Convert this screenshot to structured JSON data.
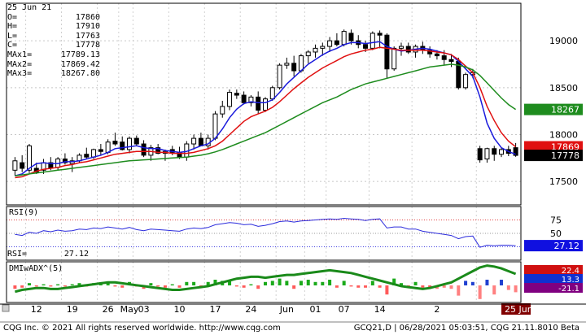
{
  "header": {
    "date": "25 Jun 21",
    "readouts": [
      {
        "label": "O=",
        "value": "17860"
      },
      {
        "label": "H=",
        "value": "17910"
      },
      {
        "label": "L=",
        "value": "17763"
      },
      {
        "label": "C=",
        "value": "17778"
      },
      {
        "label": "MAx1=",
        "value": "17789.13"
      },
      {
        "label": "MAx2=",
        "value": "17869.42"
      },
      {
        "label": "MAx3=",
        "value": "18267.80"
      }
    ]
  },
  "rsi_panel": {
    "title": "RSI(9)",
    "readout_label": "RSI=",
    "readout_value": "27.12"
  },
  "dmi_panel": {
    "title": "DMIwADX^(5)"
  },
  "footer": {
    "left": "CQG Inc. © 2021 All rights reserved worldwide. http://www.cqg.com",
    "right": "GCQ21,D | 06/28/2021 05:03:51, CQG 21.11.8010 Beta"
  },
  "colors": {
    "ma1": "#1a1adc",
    "ma2": "#e01010",
    "ma3": "#1e8c1e",
    "rsi": "#2b2bdc",
    "dmi_plus": "#1010d0",
    "dmi_minus": "#b01010",
    "dmi_last": "#800080"
  },
  "chart_data": [
    {
      "type": "candlestick",
      "ylim": [
        17250,
        19400
      ],
      "yticks": [
        17500,
        18000,
        18500,
        19000
      ],
      "x_tick_labels": [
        "12",
        "19",
        "26",
        "May",
        "03",
        "10",
        "17",
        "24",
        "Jun",
        "01",
        "07",
        "14",
        "2"
      ],
      "x_date_marker": "25 Jun 21",
      "candles": [
        [
          17620,
          17760,
          17560,
          17720
        ],
        [
          17700,
          17780,
          17600,
          17640
        ],
        [
          17620,
          17900,
          17590,
          17880
        ],
        [
          17640,
          17700,
          17580,
          17600
        ],
        [
          17620,
          17740,
          17580,
          17700
        ],
        [
          17700,
          17760,
          17620,
          17640
        ],
        [
          17650,
          17760,
          17620,
          17740
        ],
        [
          17740,
          17800,
          17680,
          17700
        ],
        [
          17690,
          17760,
          17600,
          17720
        ],
        [
          17720,
          17800,
          17700,
          17780
        ],
        [
          17790,
          17860,
          17740,
          17760
        ],
        [
          17760,
          17850,
          17740,
          17840
        ],
        [
          17840,
          17900,
          17780,
          17820
        ],
        [
          17810,
          17950,
          17790,
          17920
        ],
        [
          17930,
          18020,
          17880,
          17900
        ],
        [
          17920,
          17980,
          17830,
          17840
        ],
        [
          17840,
          17980,
          17800,
          17960
        ],
        [
          17960,
          17990,
          17880,
          17900
        ],
        [
          17900,
          17940,
          17760,
          17780
        ],
        [
          17780,
          17890,
          17720,
          17860
        ],
        [
          17860,
          17900,
          17790,
          17800
        ],
        [
          17800,
          17840,
          17720,
          17820
        ],
        [
          17840,
          17880,
          17780,
          17810
        ],
        [
          17810,
          17870,
          17740,
          17760
        ],
        [
          17760,
          17930,
          17720,
          17900
        ],
        [
          17900,
          18000,
          17840,
          17960
        ],
        [
          17960,
          18020,
          17900,
          17880
        ],
        [
          17880,
          18000,
          17840,
          17960
        ],
        [
          17960,
          18250,
          17940,
          18220
        ],
        [
          18220,
          18360,
          18180,
          18300
        ],
        [
          18300,
          18480,
          18260,
          18450
        ],
        [
          18440,
          18480,
          18380,
          18420
        ],
        [
          18420,
          18460,
          18320,
          18340
        ],
        [
          18340,
          18420,
          18300,
          18400
        ],
        [
          18400,
          18460,
          18220,
          18260
        ],
        [
          18260,
          18400,
          18240,
          18380
        ],
        [
          18380,
          18520,
          18360,
          18500
        ],
        [
          18500,
          18760,
          18480,
          18740
        ],
        [
          18740,
          18820,
          18700,
          18760
        ],
        [
          18760,
          18840,
          18620,
          18680
        ],
        [
          18680,
          18860,
          18660,
          18840
        ],
        [
          18840,
          18900,
          18760,
          18880
        ],
        [
          18880,
          18960,
          18820,
          18920
        ],
        [
          18920,
          18980,
          18840,
          18940
        ],
        [
          18940,
          19040,
          18880,
          19000
        ],
        [
          19000,
          19080,
          18940,
          18960
        ],
        [
          18960,
          19120,
          18940,
          19100
        ],
        [
          19080,
          19120,
          18960,
          19000
        ],
        [
          19000,
          19060,
          18920,
          18960
        ],
        [
          18960,
          19000,
          18880,
          18920
        ],
        [
          18920,
          19100,
          18900,
          19080
        ],
        [
          19080,
          19110,
          18920,
          19060
        ],
        [
          19060,
          19080,
          18600,
          18700
        ],
        [
          18700,
          18940,
          18680,
          18920
        ],
        [
          18920,
          18980,
          18840,
          18940
        ],
        [
          18940,
          18980,
          18860,
          18880
        ],
        [
          18880,
          18960,
          18820,
          18940
        ],
        [
          18940,
          18990,
          18860,
          18900
        ],
        [
          18900,
          18940,
          18820,
          18860
        ],
        [
          18860,
          18900,
          18800,
          18840
        ],
        [
          18840,
          18900,
          18740,
          18800
        ],
        [
          18800,
          18860,
          18720,
          18780
        ],
        [
          18780,
          18820,
          18480,
          18500
        ],
        [
          18500,
          18660,
          18480,
          18640
        ],
        [
          18640,
          18700,
          18600,
          18660
        ],
        [
          17850,
          17880,
          17700,
          17730
        ],
        [
          17740,
          17860,
          17700,
          17850
        ],
        [
          17850,
          17880,
          17720,
          17790
        ],
        [
          17790,
          17860,
          17760,
          17840
        ],
        [
          17840,
          17880,
          17770,
          17800
        ],
        [
          17860,
          17910,
          17763,
          17778
        ]
      ],
      "ma_series": [
        {
          "name": "MAx1",
          "last": 17789.13,
          "values": [
            17560,
            17580,
            17640,
            17690,
            17700,
            17690,
            17690,
            17710,
            17710,
            17720,
            17740,
            17760,
            17780,
            17810,
            17850,
            17860,
            17870,
            17880,
            17860,
            17850,
            17850,
            17830,
            17820,
            17810,
            17820,
            17850,
            17880,
            17900,
            17960,
            18060,
            18180,
            18270,
            18330,
            18350,
            18340,
            18340,
            18370,
            18450,
            18540,
            18610,
            18680,
            18750,
            18800,
            18850,
            18890,
            18920,
            18960,
            18980,
            18980,
            18970,
            18980,
            18990,
            18940,
            18910,
            18890,
            18900,
            18910,
            18920,
            18910,
            18890,
            18870,
            18850,
            18780,
            18700,
            18620,
            18400,
            18120,
            17960,
            17860,
            17820,
            17789
          ]
        },
        {
          "name": "MAx2",
          "last": 17869.42,
          "values": [
            17540,
            17550,
            17580,
            17610,
            17630,
            17640,
            17650,
            17670,
            17680,
            17700,
            17710,
            17730,
            17750,
            17770,
            17790,
            17800,
            17810,
            17820,
            17820,
            17820,
            17810,
            17810,
            17800,
            17800,
            17800,
            17810,
            17830,
            17850,
            17880,
            17930,
            18000,
            18070,
            18140,
            18190,
            18220,
            18250,
            18290,
            18350,
            18420,
            18490,
            18550,
            18610,
            18660,
            18710,
            18750,
            18790,
            18830,
            18860,
            18880,
            18900,
            18910,
            18930,
            18920,
            18910,
            18900,
            18900,
            18900,
            18900,
            18890,
            18880,
            18870,
            18850,
            18800,
            18730,
            18660,
            18500,
            18300,
            18150,
            18020,
            17930,
            17869
          ]
        },
        {
          "name": "MAx3",
          "last": 18267.8,
          "values": [
            17560,
            17570,
            17580,
            17590,
            17600,
            17610,
            17620,
            17630,
            17640,
            17650,
            17660,
            17670,
            17680,
            17690,
            17700,
            17710,
            17720,
            17725,
            17730,
            17735,
            17740,
            17745,
            17750,
            17755,
            17760,
            17770,
            17780,
            17795,
            17815,
            17840,
            17870,
            17900,
            17930,
            17960,
            17990,
            18020,
            18060,
            18100,
            18140,
            18180,
            18220,
            18260,
            18300,
            18340,
            18370,
            18400,
            18440,
            18480,
            18510,
            18540,
            18560,
            18580,
            18600,
            18620,
            18640,
            18660,
            18680,
            18700,
            18720,
            18730,
            18740,
            18750,
            18740,
            18720,
            18690,
            18630,
            18550,
            18470,
            18390,
            18320,
            18268
          ]
        }
      ]
    },
    {
      "type": "line",
      "name": "RSI(9)",
      "ylim": [
        0,
        100
      ],
      "yticks": [
        50,
        75
      ],
      "last": 27.12,
      "values": [
        48,
        46,
        52,
        50,
        55,
        53,
        56,
        54,
        55,
        58,
        57,
        60,
        59,
        62,
        60,
        58,
        61,
        57,
        55,
        58,
        57,
        56,
        55,
        54,
        58,
        60,
        59,
        61,
        66,
        68,
        70,
        69,
        66,
        67,
        63,
        65,
        68,
        72,
        73,
        71,
        73,
        74,
        75,
        76,
        77,
        76,
        78,
        77,
        76,
        74,
        76,
        77,
        60,
        62,
        62,
        58,
        58,
        54,
        52,
        50,
        48,
        46,
        40,
        44,
        45,
        24,
        28,
        27,
        28,
        28,
        27
      ]
    },
    {
      "type": "bar",
      "name": "DMIwADX^(5)",
      "values": [
        -3,
        -2,
        2,
        -1,
        1,
        -1,
        1,
        -1,
        1,
        2,
        -1,
        2,
        1,
        3,
        -1,
        -2,
        3,
        -1,
        -3,
        2,
        -1,
        -2,
        1,
        -2,
        3,
        3,
        -2,
        3,
        5,
        4,
        5,
        -1,
        -2,
        1,
        -3,
        3,
        4,
        6,
        4,
        -3,
        4,
        5,
        3,
        3,
        5,
        -2,
        4,
        -1,
        -2,
        -2,
        4,
        -2,
        -8,
        6,
        2,
        -2,
        3,
        -2,
        -3,
        -3,
        -2,
        -3,
        -9,
        4,
        3,
        -12,
        5,
        -8,
        5,
        -4,
        -6
      ],
      "adx": [
        8,
        10,
        11,
        12,
        12,
        11,
        11,
        12,
        13,
        14,
        15,
        16,
        17,
        18,
        18,
        17,
        16,
        15,
        14,
        13,
        12,
        11,
        10,
        10,
        11,
        12,
        13,
        14,
        16,
        18,
        20,
        22,
        23,
        24,
        24,
        23,
        24,
        25,
        26,
        26,
        27,
        28,
        29,
        30,
        31,
        30,
        29,
        28,
        26,
        24,
        22,
        20,
        18,
        16,
        14,
        13,
        12,
        11,
        12,
        14,
        16,
        18,
        22,
        26,
        30,
        34,
        36,
        35,
        33,
        30,
        27
      ],
      "readouts": [
        "22.4",
        "13.3",
        "-21.1"
      ]
    }
  ]
}
